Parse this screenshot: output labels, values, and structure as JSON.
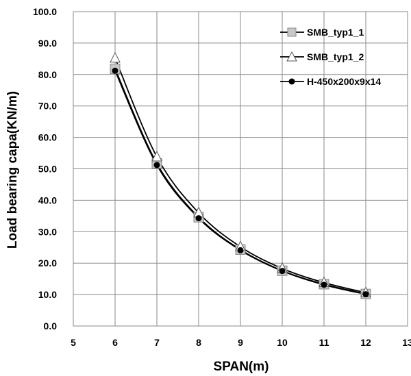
{
  "chart_data": {
    "type": "line",
    "xlabel": "SPAN(m)",
    "ylabel": "Load bearing capa(KN/m)",
    "xlim": [
      5,
      13
    ],
    "ylim": [
      0,
      100
    ],
    "x_ticks": [
      "5",
      "6",
      "7",
      "8",
      "9",
      "10",
      "11",
      "12",
      "13"
    ],
    "y_ticks": [
      "0.0",
      "10.0",
      "20.0",
      "30.0",
      "40.0",
      "50.0",
      "60.0",
      "70.0",
      "80.0",
      "90.0",
      "100.0"
    ],
    "grid": true,
    "legend_position": "top-right",
    "x": [
      6,
      7,
      8,
      9,
      10,
      11,
      12
    ],
    "series": [
      {
        "name": "SMB_typ1_1",
        "marker": "square",
        "marker_color": "#c8c8c8",
        "values": [
          81.8,
          51.7,
          34.6,
          24.3,
          17.6,
          13.3,
          10.2
        ]
      },
      {
        "name": "SMB_typ1_2",
        "marker": "triangle",
        "marker_color": "#ffffff",
        "values": [
          85.2,
          53.8,
          36.0,
          25.2,
          18.3,
          13.8,
          10.6
        ]
      },
      {
        "name": "H-450x200x9x14",
        "marker": "circle",
        "marker_color": "#000000",
        "values": [
          81.2,
          51.2,
          34.3,
          24.1,
          17.5,
          13.1,
          10.1
        ]
      }
    ]
  }
}
